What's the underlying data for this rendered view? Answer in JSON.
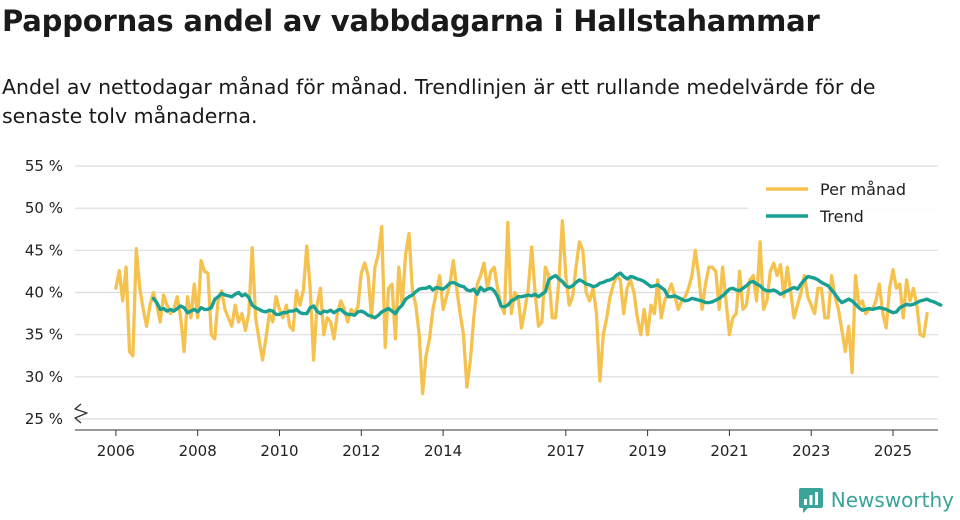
{
  "chart_data": {
    "type": "line",
    "title": "Pappornas andel av vabbdagarna i Hallstahammar",
    "subtitle": "Andel av nettodagar månad för månad. Trendlinjen är ett rullande medelvärde för de senaste tolv månaderna.",
    "xlabel": "",
    "ylabel": "",
    "ylim": [
      25,
      55
    ],
    "y_ticks": [
      25,
      30,
      35,
      40,
      45,
      50,
      55
    ],
    "y_tick_labels": [
      "25 %",
      "30 %",
      "35 %",
      "40 %",
      "45 %",
      "50 %",
      "55 %"
    ],
    "x_ticks": [
      2006,
      2008,
      2010,
      2012,
      2014,
      2017,
      2019,
      2021,
      2023,
      2025
    ],
    "x_tick_labels": [
      "2006",
      "2008",
      "2010",
      "2012",
      "2014",
      "2017",
      "2019",
      "2021",
      "2023",
      "2025"
    ],
    "x_range": [
      2005.0,
      2026.1
    ],
    "start": 2006.0,
    "step": 0.08333,
    "grid": true,
    "axis_break": true,
    "legend_position": "top-right",
    "colors": {
      "monthly": "#f5c24f",
      "trend": "#1aa093",
      "grid": "#dcdcdc"
    },
    "series": [
      {
        "name": "Per månad",
        "values": [
          40.5,
          42.6,
          39.0,
          43.0,
          33.0,
          32.5,
          45.2,
          40.5,
          38.0,
          36.0,
          38.5,
          40.0,
          38.5,
          36.5,
          39.7,
          38.5,
          37.5,
          38.0,
          39.5,
          37.0,
          33.0,
          39.5,
          37.0,
          41.0,
          37.0,
          43.8,
          42.5,
          42.3,
          35.0,
          34.5,
          39.0,
          40.2,
          38.0,
          37.0,
          36.0,
          38.5,
          36.5,
          37.5,
          35.5,
          37.5,
          45.3,
          37.0,
          34.5,
          32.0,
          34.5,
          37.5,
          36.5,
          39.5,
          38.0,
          37.0,
          38.5,
          36.0,
          35.5,
          40.2,
          38.5,
          40.3,
          45.5,
          40.5,
          32.0,
          38.5,
          40.5,
          35.0,
          37.0,
          36.5,
          34.5,
          37.5,
          39.0,
          38.0,
          36.5,
          38.0,
          37.5,
          38.3,
          42.3,
          43.5,
          42.0,
          37.0,
          43.0,
          44.5,
          47.8,
          33.5,
          40.5,
          41.0,
          34.5,
          43.0,
          38.5,
          44.5,
          47.0,
          40.2,
          38.5,
          35.0,
          28.0,
          32.5,
          34.5,
          38.0,
          40.0,
          42.0,
          38.0,
          39.5,
          41.0,
          43.8,
          40.5,
          37.5,
          35.0,
          28.8,
          32.0,
          37.0,
          41.0,
          42.0,
          43.5,
          40.5,
          42.5,
          43.0,
          40.5,
          38.5,
          37.5,
          48.3,
          37.5,
          40.0,
          39.5,
          35.8,
          38.0,
          40.5,
          45.4,
          40.0,
          36.0,
          36.5,
          43.0,
          42.0,
          37.0,
          37.0,
          41.5,
          48.5,
          42.0,
          38.5,
          39.5,
          43.0,
          46.0,
          45.0,
          40.0,
          39.0,
          40.5,
          37.5,
          29.5,
          35.0,
          37.0,
          39.5,
          41.0,
          42.0,
          41.5,
          37.5,
          40.5,
          41.5,
          40.0,
          37.0,
          35.0,
          38.0,
          35.0,
          38.5,
          37.5,
          41.5,
          37.0,
          39.0,
          40.0,
          41.0,
          39.5,
          38.0,
          39.0,
          39.5,
          40.5,
          42.0,
          45.0,
          42.0,
          38.0,
          41.0,
          43.0,
          43.0,
          42.5,
          38.0,
          43.0,
          39.0,
          35.0,
          37.0,
          37.5,
          42.5,
          38.0,
          38.5,
          41.5,
          42.0,
          39.0,
          46.0,
          38.0,
          39.0,
          42.5,
          43.5,
          42.0,
          43.3,
          39.5,
          43.0,
          40.0,
          37.0,
          38.5,
          40.0,
          42.0,
          39.5,
          38.5,
          37.5,
          40.5,
          40.5,
          37.0,
          37.0,
          42.0,
          39.5,
          38.0,
          35.5,
          33.0,
          36.0,
          30.5,
          42.0,
          38.5,
          39.0,
          37.5,
          38.0,
          38.0,
          39.0,
          41.0,
          37.5,
          35.8,
          40.5,
          42.7,
          40.5,
          41.0,
          37.0,
          41.5,
          39.0,
          40.5,
          38.5,
          35.0,
          34.8,
          37.5
        ]
      },
      {
        "name": "Trend",
        "start": 2006.917,
        "values": [
          39.3,
          38.8,
          38.0,
          38.1,
          37.8,
          38.0,
          37.8,
          38.1,
          38.4,
          38.2,
          37.6,
          37.8,
          38.0,
          37.7,
          38.2,
          38.0,
          38.0,
          38.2,
          39.2,
          39.5,
          39.9,
          39.7,
          39.6,
          39.5,
          39.8,
          40.0,
          39.6,
          39.8,
          39.4,
          38.5,
          38.2,
          38.0,
          37.8,
          37.7,
          37.9,
          37.8,
          37.4,
          37.4,
          37.6,
          37.6,
          37.8,
          37.8,
          38.0,
          37.6,
          37.5,
          37.5,
          38.2,
          38.4,
          37.8,
          37.5,
          37.8,
          37.7,
          37.9,
          37.6,
          37.9,
          38.0,
          37.6,
          37.4,
          37.4,
          37.3,
          37.7,
          37.8,
          37.6,
          37.3,
          37.2,
          37.0,
          37.3,
          37.7,
          37.9,
          38.1,
          37.8,
          37.5,
          38.1,
          38.5,
          39.2,
          39.5,
          39.7,
          40.1,
          40.4,
          40.5,
          40.5,
          40.7,
          40.3,
          40.6,
          40.5,
          40.4,
          40.7,
          41.1,
          41.2,
          41.0,
          40.8,
          40.7,
          40.3,
          40.2,
          40.4,
          39.8,
          40.6,
          40.2,
          40.4,
          40.5,
          40.2,
          39.5,
          38.4,
          38.3,
          38.5,
          39.0,
          39.2,
          39.5,
          39.5,
          39.6,
          39.7,
          39.6,
          39.8,
          39.5,
          39.8,
          40.1,
          41.5,
          41.8,
          42.0,
          41.6,
          41.3,
          40.8,
          40.6,
          40.8,
          41.2,
          41.5,
          41.3,
          41.0,
          40.9,
          40.7,
          40.8,
          41.1,
          41.2,
          41.4,
          41.5,
          41.7,
          42.1,
          42.3,
          41.9,
          41.6,
          41.9,
          41.8,
          41.6,
          41.5,
          41.3,
          41.0,
          40.7,
          40.8,
          40.9,
          40.6,
          40.3,
          39.5,
          39.5,
          39.6,
          39.4,
          39.2,
          39.0,
          39.1,
          39.3,
          39.2,
          39.1,
          39.0,
          38.8,
          38.8,
          38.9,
          39.1,
          39.3,
          39.6,
          40.0,
          40.4,
          40.5,
          40.3,
          40.2,
          40.5,
          40.8,
          41.2,
          41.3,
          41.0,
          40.8,
          40.4,
          40.2,
          40.2,
          40.3,
          40.1,
          39.8,
          40.0,
          40.2,
          40.4,
          40.6,
          40.4,
          41.0,
          41.5,
          41.9,
          41.8,
          41.7,
          41.5,
          41.2,
          41.0,
          40.8,
          40.3,
          39.8,
          39.2,
          38.8,
          39.0,
          39.2,
          39.0,
          38.6,
          38.2,
          37.9,
          38.0,
          38.1,
          38.0,
          38.1,
          38.2,
          38.1,
          38.0,
          37.8,
          37.6,
          37.7,
          38.2,
          38.4,
          38.6,
          38.5,
          38.6,
          38.8,
          39.0,
          39.1,
          39.2,
          39.0,
          38.9,
          38.7,
          38.5
        ]
      }
    ]
  },
  "brand": {
    "name": "Newsworthy"
  }
}
